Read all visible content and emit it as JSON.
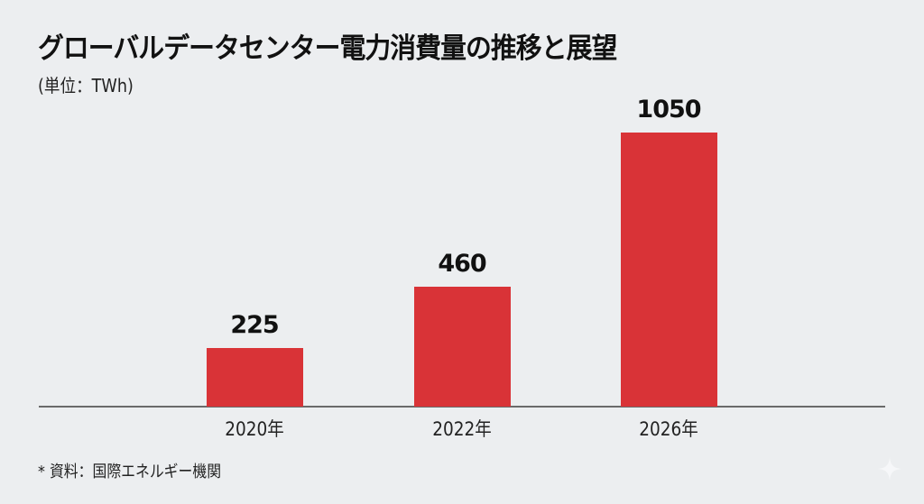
{
  "chart_data": {
    "type": "bar",
    "title": "グローバルデータセンター電力消費量の推移と展望",
    "subtitle": "(単位：TWh)",
    "categories": [
      "2020年",
      "2022年",
      "2026年"
    ],
    "values": [
      225,
      460,
      1050
    ],
    "value_labels": [
      "225",
      "460",
      "1050"
    ],
    "xlabel": "",
    "ylabel": "",
    "unit": "TWh",
    "ylim": [
      0,
      1100
    ],
    "grid": false,
    "legend": null,
    "bar_color": "#d93337",
    "source_note": "* 資料：国際エネルギー機関"
  },
  "header": {
    "title": "グローバルデータセンター電力消費量の推移と展望",
    "unit": "(単位：TWh)"
  },
  "footer": {
    "source": "* 資料：国際エネルギー機関",
    "watermark_icon": "sparkle-icon"
  }
}
